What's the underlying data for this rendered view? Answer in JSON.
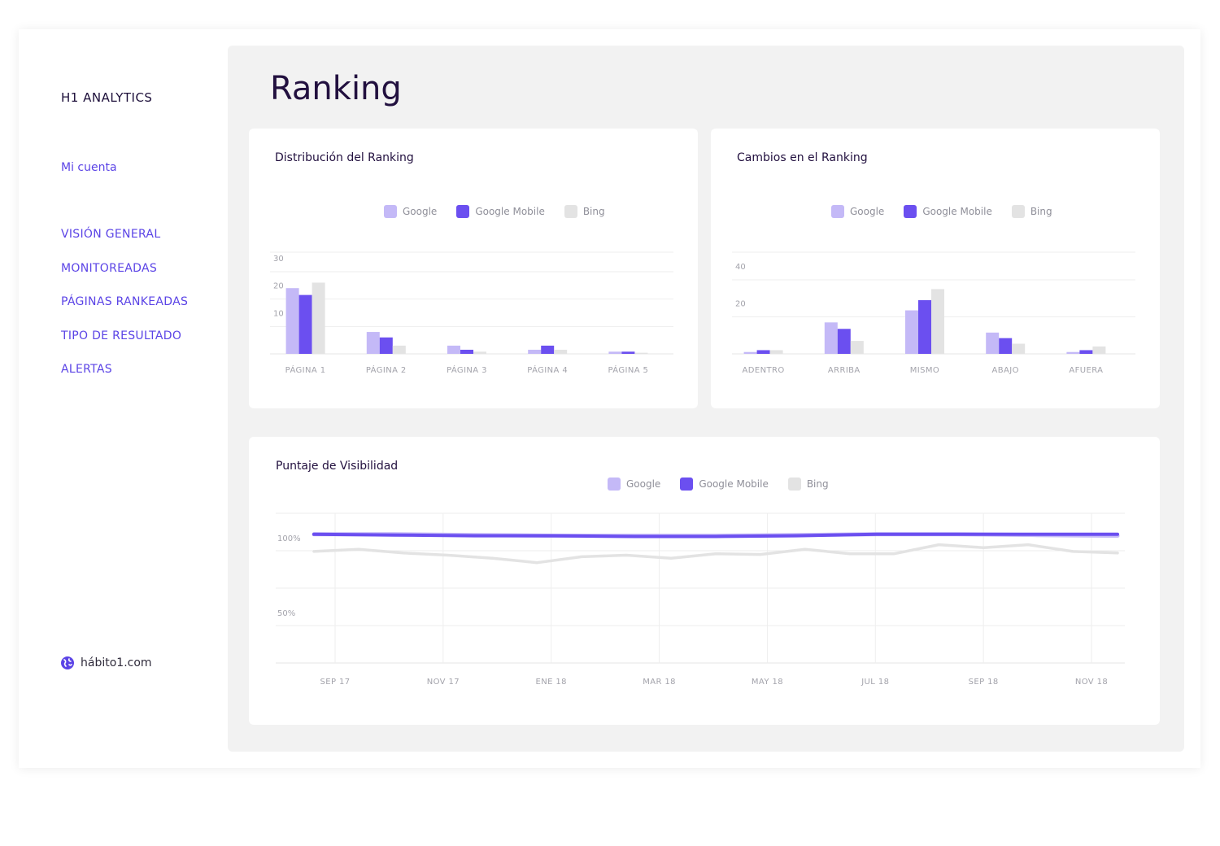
{
  "sidebar": {
    "brand": "H1 ANALYTICS",
    "account": "Mi cuenta",
    "nav": [
      "VISIÓN GENERAL",
      "MONITOREADAS",
      "PÁGINAS RANKEADAS",
      "TIPO DE RESULTADO",
      "ALERTAS"
    ],
    "site": "hábito1.com",
    "site_icon": "globe-icon"
  },
  "page": {
    "title": "Ranking"
  },
  "colors": {
    "google": "#c4b9f7",
    "google_mobile": "#6b4ff0",
    "bing": "#e3e3e3",
    "accent": "#5b44e6"
  },
  "legend": [
    "Google",
    "Google Mobile",
    "Bing"
  ],
  "cards": {
    "distribution": {
      "title": "Distribución del Ranking"
    },
    "changes": {
      "title": "Cambios en el Ranking"
    },
    "visibility": {
      "title": "Puntaje de Visibilidad"
    }
  },
  "chart_data": [
    {
      "type": "bar",
      "title": "Distribución del Ranking",
      "categories": [
        "PÁGINA 1",
        "PÁGINA 2",
        "PÁGINA 3",
        "PÁGINA 4",
        "PÁGINA 5"
      ],
      "series": [
        {
          "name": "Google",
          "values": [
            24,
            8,
            3,
            1.5,
            0.8
          ]
        },
        {
          "name": "Google Mobile",
          "values": [
            21.5,
            6,
            1.5,
            3,
            0.8
          ]
        },
        {
          "name": "Bing",
          "values": [
            26,
            3,
            0.8,
            1.5,
            0.4
          ]
        }
      ],
      "yticks": [
        10,
        20,
        30
      ],
      "ylim": [
        0,
        30
      ],
      "legend": "top-center",
      "grid": true
    },
    {
      "type": "bar",
      "title": "Cambios en el Ranking",
      "categories": [
        "ADENTRO",
        "ARRIBA",
        "MISMO",
        "ABAJO",
        "AFUERA"
      ],
      "series": [
        {
          "name": "Google",
          "values": [
            1,
            17,
            23.5,
            11.5,
            1
          ]
        },
        {
          "name": "Google Mobile",
          "values": [
            2,
            13.5,
            29,
            8.5,
            2
          ]
        },
        {
          "name": "Bing",
          "values": [
            2,
            7,
            35,
            5.5,
            4
          ]
        }
      ],
      "yticks": [
        20,
        40
      ],
      "ylim": [
        0,
        40
      ],
      "legend": "top-center",
      "grid": true
    },
    {
      "type": "line",
      "title": "Puntaje de Visibilidad",
      "xticks": [
        "SEP 17",
        "NOV 17",
        "ENE 18",
        "MAR 18",
        "MAY 18",
        "JUL 18",
        "SEP 18",
        "NOV 18"
      ],
      "yticks": [
        "100%",
        "50%"
      ],
      "y_tick_values": [
        100,
        50
      ],
      "ylim": [
        25,
        125
      ],
      "series": [
        {
          "name": "Google",
          "values": [
            111,
            111,
            110.5,
            110,
            110,
            110,
            110.5,
            111,
            111,
            110.5,
            110
          ]
        },
        {
          "name": "Google Mobile",
          "values": [
            111,
            110.5,
            110,
            110,
            109.5,
            109.5,
            110,
            111,
            111,
            111,
            111
          ]
        },
        {
          "name": "Bing",
          "values": [
            99.5,
            101,
            98.5,
            97,
            95,
            92,
            96,
            97,
            95,
            98,
            97.5,
            101,
            98,
            98,
            104,
            102,
            104,
            99.5,
            98.5
          ]
        }
      ],
      "legend": "top-center",
      "grid": true
    }
  ]
}
